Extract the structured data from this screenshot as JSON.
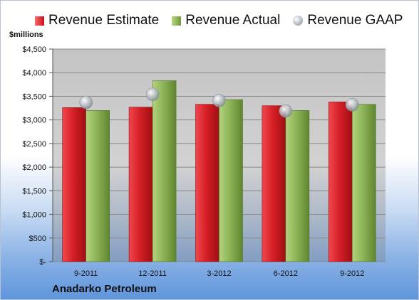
{
  "legend": {
    "estimate_label": "Revenue Estimate",
    "actual_label": "Revenue Actual",
    "gaap_label": "Revenue GAAP"
  },
  "unit_label": "$millions",
  "company": "Anadarko Petroleum",
  "colors": {
    "estimate": "#d51f26",
    "actual": "#8db457",
    "gaap": "#b7bec6",
    "plot_background": "#c8c8c8"
  },
  "chart_data": {
    "type": "bar",
    "categories": [
      "9-2011",
      "12-2011",
      "3-2012",
      "6-2012",
      "9-2012"
    ],
    "series": [
      {
        "name": "Revenue Estimate",
        "values": [
          3260,
          3270,
          3330,
          3300,
          3380
        ]
      },
      {
        "name": "Revenue Actual",
        "values": [
          3200,
          3830,
          3430,
          3200,
          3330
        ]
      },
      {
        "name": "Revenue GAAP",
        "values": [
          3370,
          3540,
          3410,
          3190,
          3320
        ]
      }
    ],
    "ylim": [
      0,
      4500
    ],
    "yticks": [
      0,
      500,
      1000,
      1500,
      2000,
      2500,
      3000,
      3500,
      4000,
      4500
    ],
    "ytick_labels": [
      "$-",
      "$500",
      "$1,000",
      "$1,500",
      "$2,000",
      "$2,500",
      "$3,000",
      "$3,500",
      "$4,000",
      "$4,500"
    ],
    "grid": true,
    "legend_position": "top"
  }
}
